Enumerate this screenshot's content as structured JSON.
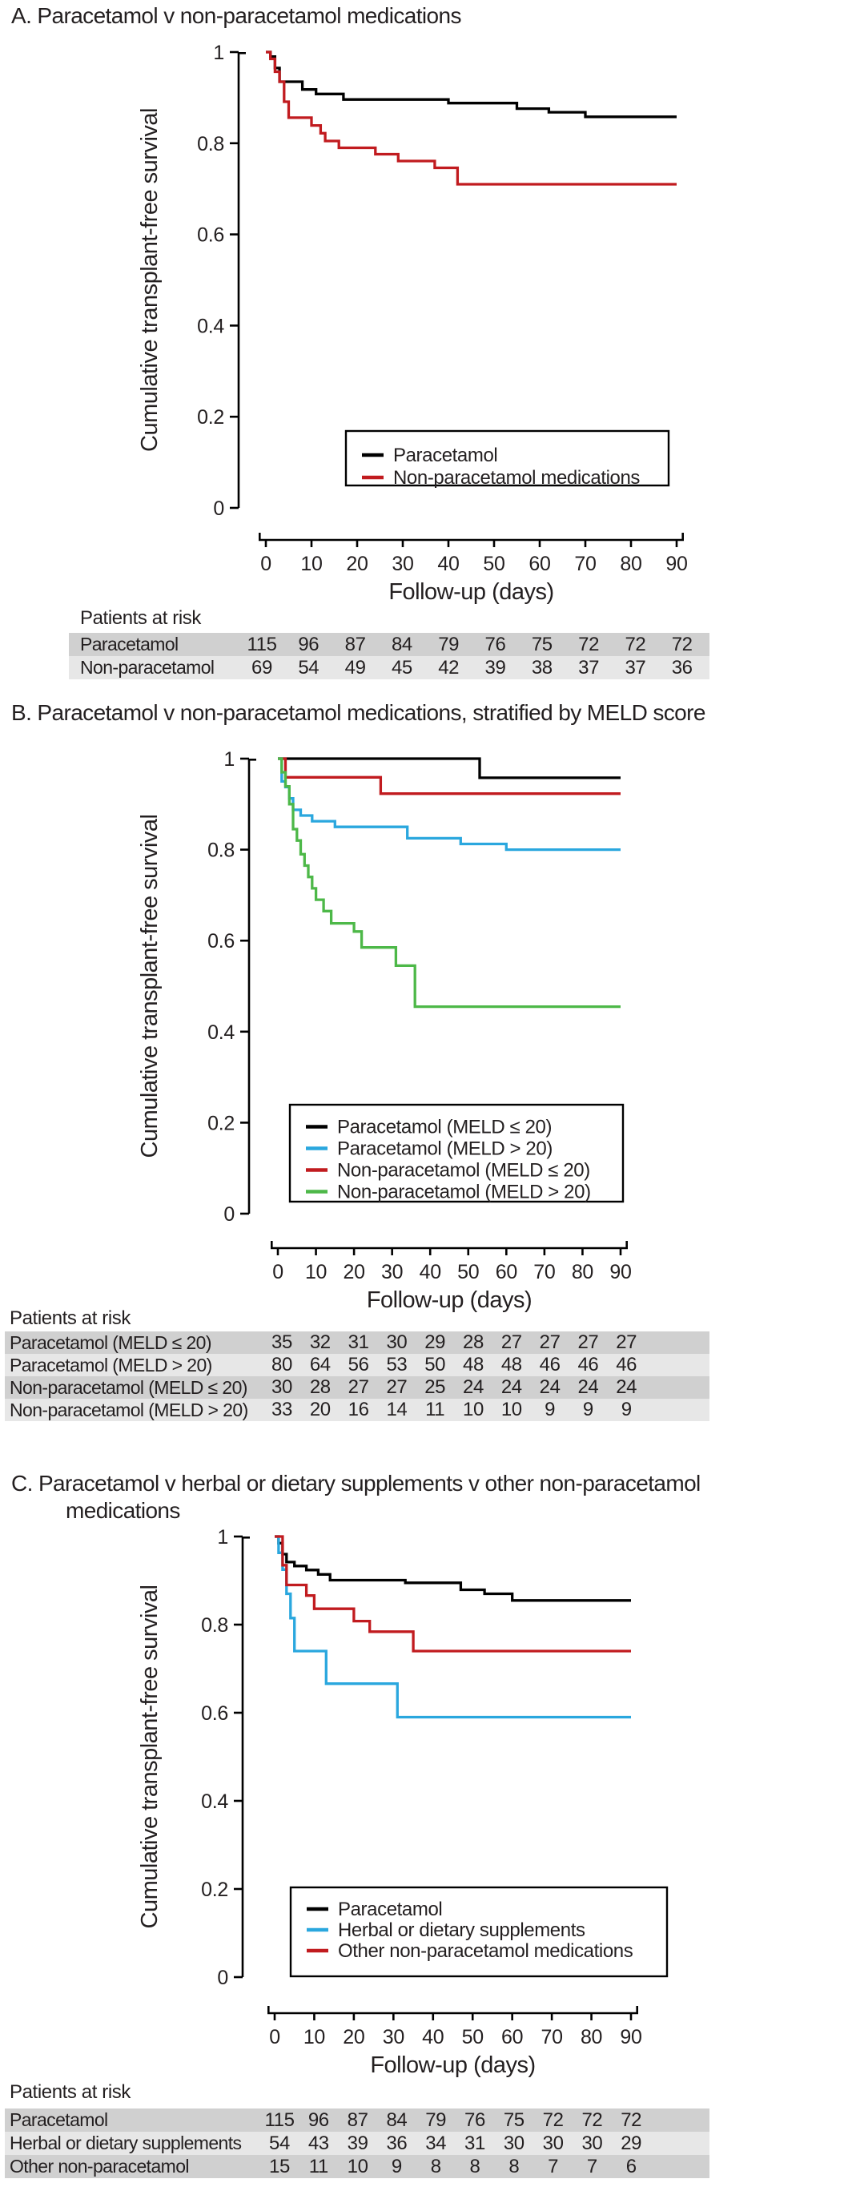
{
  "figure": {
    "y_axis_label": "Cumulative transplant-free survival",
    "x_axis_label": "Follow-up (days)",
    "risk_header": "Patients at risk"
  },
  "colors": {
    "black": "#000000",
    "red": "#c11b1f",
    "blue": "#2aa7de",
    "green": "#4db848",
    "row_dark": "#d0d0d0",
    "row_light": "#e7e7e7",
    "text": "#231f20"
  },
  "chart_data": [
    {
      "type": "line",
      "panel": "A",
      "title": "A. Paracetamol v non-paracetamol medications",
      "xlabel": "Follow-up (days)",
      "ylabel": "Cumulative transplant-free survival",
      "xlim": [
        0,
        90
      ],
      "ylim": [
        0,
        1
      ],
      "x_ticks": [
        0,
        10,
        20,
        30,
        40,
        50,
        60,
        70,
        80,
        90
      ],
      "y_ticks": [
        "1",
        "0.8",
        "0.6",
        "0.4",
        "0.2",
        "0"
      ],
      "legend_position": "lower-center",
      "series": [
        {
          "name": "Paracetamol",
          "color": "#000000",
          "steps": [
            [
              0,
              1
            ],
            [
              1,
              0.99
            ],
            [
              2,
              0.965
            ],
            [
              3,
              0.935
            ],
            [
              8,
              0.918
            ],
            [
              11,
              0.908
            ],
            [
              17,
              0.896
            ],
            [
              40,
              0.888
            ],
            [
              55,
              0.876
            ],
            [
              62,
              0.868
            ],
            [
              70,
              0.858
            ],
            [
              90,
              0.858
            ]
          ]
        },
        {
          "name": "Non-paracetamol medications",
          "color": "#c11b1f",
          "steps": [
            [
              0,
              1
            ],
            [
              1,
              0.985
            ],
            [
              2,
              0.957
            ],
            [
              3,
              0.935
            ],
            [
              4,
              0.891
            ],
            [
              5,
              0.856
            ],
            [
              10,
              0.839
            ],
            [
              12,
              0.822
            ],
            [
              13,
              0.805
            ],
            [
              16,
              0.79
            ],
            [
              24,
              0.776
            ],
            [
              29,
              0.761
            ],
            [
              37,
              0.746
            ],
            [
              42,
              0.71
            ],
            [
              90,
              0.71
            ]
          ]
        }
      ],
      "risk_table": {
        "header": "Patients at risk",
        "rows": [
          {
            "label": "Paracetamol",
            "values": [
              115,
              96,
              87,
              84,
              79,
              76,
              75,
              72,
              72,
              72
            ]
          },
          {
            "label": "Non-paracetamol",
            "values": [
              69,
              54,
              49,
              45,
              42,
              39,
              38,
              37,
              37,
              36
            ]
          }
        ]
      }
    },
    {
      "type": "line",
      "panel": "B",
      "title": "B. Paracetamol v non-paracetamol medications, stratified by MELD score",
      "xlabel": "Follow-up (days)",
      "ylabel": "Cumulative transplant-free survival",
      "xlim": [
        0,
        90
      ],
      "ylim": [
        0,
        1
      ],
      "x_ticks": [
        0,
        10,
        20,
        30,
        40,
        50,
        60,
        70,
        80,
        90
      ],
      "y_ticks": [
        "1",
        "0.8",
        "0.6",
        "0.4",
        "0.2",
        "0"
      ],
      "legend_position": "lower-center",
      "series": [
        {
          "name": "Paracetamol (MELD ≤ 20)",
          "color": "#000000",
          "steps": [
            [
              0,
              1
            ],
            [
              53,
              0.958
            ],
            [
              90,
              0.958
            ]
          ]
        },
        {
          "name": "Paracetamol (MELD > 20)",
          "color": "#2aa7de",
          "steps": [
            [
              0,
              1
            ],
            [
              1,
              0.95
            ],
            [
              2,
              0.9375
            ],
            [
              3,
              0.9125
            ],
            [
              4,
              0.8875
            ],
            [
              6,
              0.875
            ],
            [
              9,
              0.8625
            ],
            [
              15,
              0.85
            ],
            [
              34,
              0.825
            ],
            [
              48,
              0.8125
            ],
            [
              60,
              0.8
            ],
            [
              90,
              0.8
            ]
          ]
        },
        {
          "name": "Non-paracetamol (MELD ≤ 20)",
          "color": "#c11b1f",
          "steps": [
            [
              0,
              1
            ],
            [
              2,
              0.959
            ],
            [
              27,
              0.923
            ],
            [
              90,
              0.923
            ]
          ]
        },
        {
          "name": "Non-paracetamol (MELD > 20)",
          "color": "#4db848",
          "steps": [
            [
              0,
              1
            ],
            [
              1,
              0.97
            ],
            [
              2,
              0.939
            ],
            [
              3,
              0.9
            ],
            [
              4,
              0.845
            ],
            [
              5,
              0.82
            ],
            [
              6,
              0.79
            ],
            [
              7,
              0.765
            ],
            [
              8,
              0.74
            ],
            [
              9,
              0.715
            ],
            [
              10,
              0.69
            ],
            [
              12,
              0.665
            ],
            [
              14,
              0.638
            ],
            [
              20,
              0.62
            ],
            [
              22,
              0.585
            ],
            [
              31,
              0.545
            ],
            [
              36,
              0.455
            ],
            [
              90,
              0.455
            ]
          ]
        }
      ],
      "risk_table": {
        "header": "Patients at risk",
        "rows": [
          {
            "label": "Paracetamol (MELD ≤ 20)",
            "values": [
              35,
              32,
              31,
              30,
              29,
              28,
              27,
              27,
              27,
              27
            ]
          },
          {
            "label": "Paracetamol (MELD > 20)",
            "values": [
              80,
              64,
              56,
              53,
              50,
              48,
              48,
              46,
              46,
              46
            ]
          },
          {
            "label": "Non-paracetamol (MELD ≤ 20)",
            "values": [
              30,
              28,
              27,
              27,
              25,
              24,
              24,
              24,
              24,
              24
            ]
          },
          {
            "label": "Non-paracetamol (MELD > 20)",
            "values": [
              33,
              20,
              16,
              14,
              11,
              10,
              10,
              9,
              9,
              9
            ]
          }
        ]
      }
    },
    {
      "type": "line",
      "panel": "C",
      "title": "C. Paracetamol v herbal or dietary supplements v other non-paracetamol",
      "title_line2": "medications",
      "xlabel": "Follow-up (days)",
      "ylabel": "Cumulative transplant-free survival",
      "xlim": [
        0,
        90
      ],
      "ylim": [
        0,
        1
      ],
      "x_ticks": [
        0,
        10,
        20,
        30,
        40,
        50,
        60,
        70,
        80,
        90
      ],
      "y_ticks": [
        "1",
        "0.8",
        "0.6",
        "0.4",
        "0.2",
        "0"
      ],
      "legend_position": "lower-center",
      "series": [
        {
          "name": "Paracetamol",
          "color": "#000000",
          "steps": [
            [
              0,
              1
            ],
            [
              1,
              0.985
            ],
            [
              2,
              0.96
            ],
            [
              3,
              0.942
            ],
            [
              5,
              0.933
            ],
            [
              8,
              0.924
            ],
            [
              11,
              0.914
            ],
            [
              14,
              0.901
            ],
            [
              33,
              0.895
            ],
            [
              47,
              0.879
            ],
            [
              53,
              0.87
            ],
            [
              60,
              0.855
            ],
            [
              90,
              0.855
            ]
          ]
        },
        {
          "name": "Herbal or dietary supplements",
          "color": "#2aa7de",
          "steps": [
            [
              0,
              1
            ],
            [
              1,
              0.963
            ],
            [
              2,
              0.925
            ],
            [
              3,
              0.87
            ],
            [
              4,
              0.815
            ],
            [
              5,
              0.74
            ],
            [
              13,
              0.666
            ],
            [
              31,
              0.59
            ],
            [
              90,
              0.59
            ]
          ]
        },
        {
          "name": "Other non-paracetamol medications",
          "color": "#c11b1f",
          "steps": [
            [
              0,
              1
            ],
            [
              2,
              0.935
            ],
            [
              3,
              0.89
            ],
            [
              8,
              0.866
            ],
            [
              10,
              0.836
            ],
            [
              20,
              0.808
            ],
            [
              24,
              0.784
            ],
            [
              35,
              0.74
            ],
            [
              90,
              0.74
            ]
          ]
        }
      ],
      "risk_table": {
        "header": "Patients at risk",
        "rows": [
          {
            "label": "Paracetamol",
            "values": [
              115,
              96,
              87,
              84,
              79,
              76,
              75,
              72,
              72,
              72
            ]
          },
          {
            "label": "Herbal or dietary supplements",
            "values": [
              54,
              43,
              39,
              36,
              34,
              31,
              30,
              30,
              30,
              29
            ]
          },
          {
            "label": "Other non-paracetamol",
            "values": [
              15,
              11,
              10,
              9,
              8,
              8,
              8,
              7,
              7,
              6
            ]
          }
        ]
      }
    }
  ]
}
